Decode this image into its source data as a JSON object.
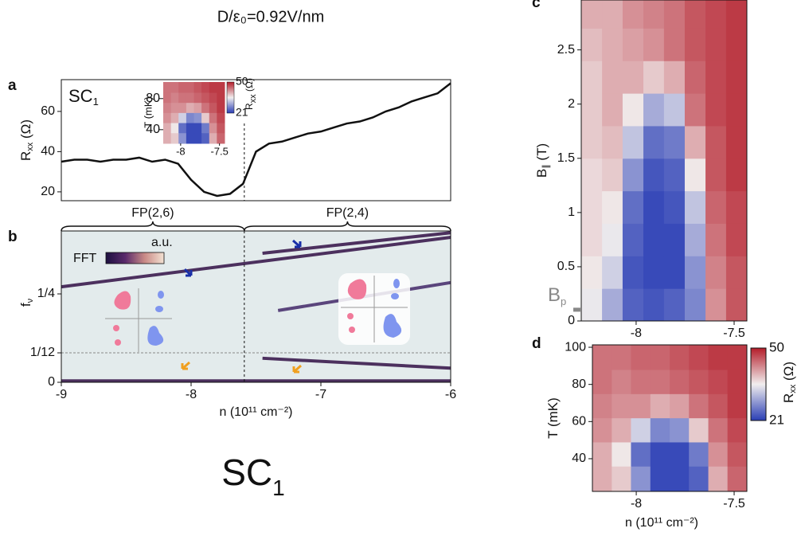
{
  "header": {
    "title": "D/ε₀=0.92V/nm",
    "footer_main": "SC",
    "footer_sub": "1"
  },
  "chart_data": [
    {
      "type": "line",
      "panel": "a",
      "xlim": [
        -9,
        -6
      ],
      "ylim": [
        15.6,
        75.8
      ],
      "yticks": [
        20,
        40,
        60
      ],
      "ylabel": {
        "main": "R",
        "sub": "xx",
        "rest": " (Ω)"
      },
      "color": "#111111",
      "x": [
        -9,
        -8.9,
        -8.8,
        -8.7,
        -8.6,
        -8.5,
        -8.4,
        -8.3,
        -8.2,
        -8.1,
        -8.0,
        -7.9,
        -7.8,
        -7.7,
        -7.6,
        -7.5,
        -7.4,
        -7.3,
        -7.2,
        -7.1,
        -7.0,
        -6.9,
        -6.8,
        -6.7,
        -6.6,
        -6.5,
        -6.4,
        -6.3,
        -6.2,
        -6.1,
        -6.0
      ],
      "values": [
        35,
        36,
        36,
        35,
        36,
        36,
        37,
        35,
        36,
        34,
        26,
        20,
        18,
        19,
        24,
        40,
        44,
        45,
        47,
        49,
        50,
        52,
        54,
        55,
        57,
        60,
        62,
        65,
        67,
        69,
        74
      ],
      "divider_x": -7.59,
      "annotation": {
        "main": "SC",
        "sub": "1"
      },
      "brackets": [
        {
          "label": "FP(2,6)",
          "range": [
            -9,
            -7.59
          ]
        },
        {
          "label": "FP(2,4)",
          "range": [
            -7.59,
            -6
          ]
        }
      ],
      "inset": {
        "xlim": [
          -8.224,
          -7.435
        ],
        "ylim": [
          22.4,
          101.3
        ],
        "xticks": [
          -8,
          -7.5
        ],
        "yticks": [
          40,
          80
        ],
        "ylabel": "T (mK)",
        "colorbar_ticks": [
          21,
          50
        ],
        "colorbar_label": {
          "main": "R",
          "sub": "xx",
          "rest": " (Ω)"
        }
      }
    },
    {
      "type": "spectrum",
      "panel": "b",
      "xlim": [
        -9,
        -6
      ],
      "ylim": [
        0,
        0.428
      ],
      "xticks": [
        -9,
        -8,
        -7,
        -6
      ],
      "yticks": [
        0,
        {
          "value": 0.0833,
          "label": "1/12"
        },
        {
          "value": 0.25,
          "label": "1/4"
        }
      ],
      "xlabel": "n (10¹¹ cm⁻²)",
      "ylabel": {
        "main": "f",
        "sub": "ν",
        "rest": ""
      },
      "background": "#e3ebec",
      "dashed_hline": 0.0833,
      "divider_x": -7.59,
      "colorbar_label": "FFT",
      "colorbar_unit": "a.u.",
      "colormap": [
        "#1d1040",
        "#5a2a6b",
        "#c98a86",
        "#f3e2d3"
      ],
      "series": [
        {
          "color": "#3b1c4f",
          "x": [
            -9,
            -6
          ],
          "values": [
            0.27,
            0.41
          ]
        },
        {
          "color": "#3b1c4f",
          "x": [
            -7.45,
            -6
          ],
          "values": [
            0.365,
            0.423
          ]
        },
        {
          "color": "#4a3370",
          "x": [
            -7.33,
            -6
          ],
          "values": [
            0.203,
            0.282
          ]
        },
        {
          "color": "#3b1c4f",
          "x": [
            -7.45,
            -6
          ],
          "values": [
            0.068,
            0.04
          ]
        },
        {
          "color": "#3b1c4f",
          "x": [
            -9,
            -6
          ],
          "values": [
            0.004,
            0.004
          ]
        }
      ]
    },
    {
      "type": "heatmap",
      "panel": "c",
      "xlim": [
        -8.28,
        -7.435
      ],
      "ylim": [
        0,
        2.96
      ],
      "xticks": [
        -8,
        -7.5
      ],
      "yticks": [
        0,
        0.5,
        1,
        1.5,
        2,
        2.5
      ],
      "ylabel": {
        "main": "B",
        "sub": "∥",
        "rest": " (T)"
      },
      "bp": 0.1,
      "bp_label": {
        "main": "B",
        "sub": "p"
      },
      "clim": [
        21,
        50
      ],
      "colormap": [
        "#2a3eb5",
        "#f1eeee",
        "#b41d2a"
      ],
      "x_edges": [
        -8.28,
        -8.174,
        -8.069,
        -7.963,
        -7.858,
        -7.752,
        -7.646,
        -7.541,
        -7.435
      ],
      "y_edges": [
        0,
        0.3,
        0.6,
        0.9,
        1.2,
        1.5,
        1.8,
        2.1,
        2.4,
        2.7,
        2.96
      ],
      "z": [
        [
          35,
          30,
          24,
          23,
          24,
          27,
          42,
          46
        ],
        [
          36,
          33,
          23,
          22,
          22,
          28,
          43,
          46
        ],
        [
          37,
          35,
          24,
          22,
          22,
          30,
          44,
          47
        ],
        [
          37,
          36,
          25,
          22,
          23,
          32,
          45,
          47
        ],
        [
          37,
          38,
          28,
          23,
          24,
          36,
          46,
          48
        ],
        [
          38,
          39,
          32,
          25,
          26,
          40,
          46,
          48
        ],
        [
          38,
          40,
          36,
          30,
          32,
          44,
          47,
          48
        ],
        [
          38,
          40,
          40,
          38,
          40,
          45,
          47,
          48
        ],
        [
          39,
          40,
          41,
          42,
          44,
          46,
          47,
          48
        ],
        [
          40,
          40,
          42,
          43,
          44,
          46,
          47,
          48
        ]
      ]
    },
    {
      "type": "heatmap",
      "panel": "d",
      "xlim": [
        -8.224,
        -7.435
      ],
      "ylim": [
        22.4,
        101.3
      ],
      "xticks": [
        -8,
        -7.5
      ],
      "yticks": [
        40,
        60,
        80,
        100
      ],
      "xlabel": "n (10¹¹ cm⁻²)",
      "ylabel": {
        "main": "T (mK)",
        "sub": "",
        "rest": ""
      },
      "clim": [
        21,
        50
      ],
      "colormap": [
        "#2a3eb5",
        "#f1eeee",
        "#b41d2a"
      ],
      "colorbar_ticks": [
        21,
        50
      ],
      "colorbar_label": {
        "main": "R",
        "sub": "xx",
        "rest": " (Ω)"
      },
      "x_edges": [
        -8.224,
        -8.125,
        -8.027,
        -7.928,
        -7.829,
        -7.731,
        -7.632,
        -7.534,
        -7.435
      ],
      "y_edges": [
        22.4,
        36,
        49,
        62,
        75,
        88,
        101.3
      ],
      "z": [
        [
          40,
          38,
          28,
          22,
          22,
          24,
          40,
          45
        ],
        [
          40,
          36,
          25,
          22,
          22,
          26,
          42,
          46
        ],
        [
          42,
          40,
          33,
          27,
          28,
          38,
          44,
          47
        ],
        [
          43,
          42,
          42,
          40,
          41,
          44,
          46,
          48
        ],
        [
          44,
          43,
          44,
          44,
          45,
          46,
          47,
          48
        ],
        [
          44,
          44,
          45,
          45,
          46,
          47,
          48,
          48
        ]
      ]
    }
  ]
}
